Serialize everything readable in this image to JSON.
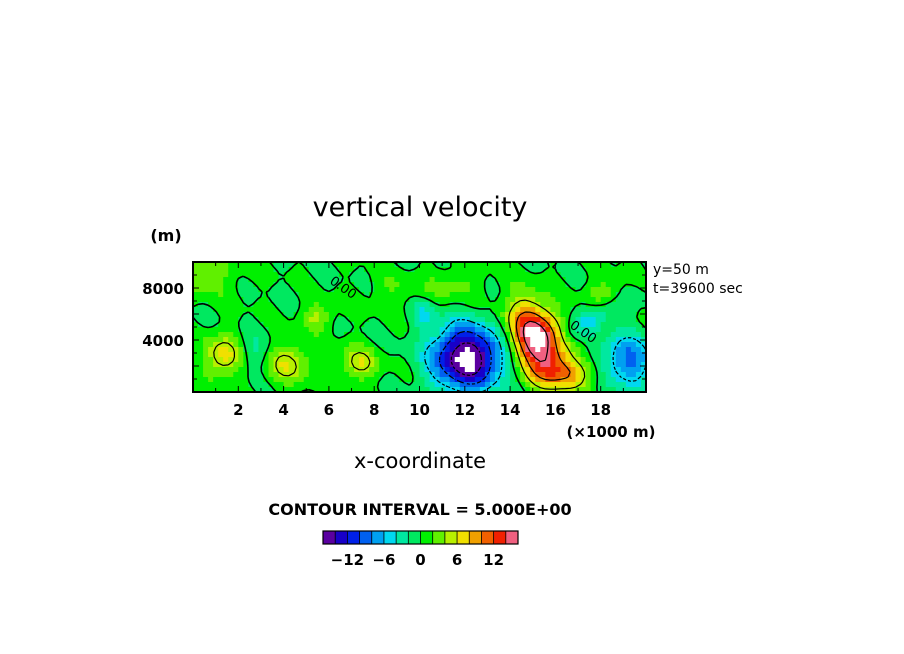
{
  "chart_data": {
    "type": "heatmap",
    "title": "vertical velocity",
    "xlabel": "x-coordinate",
    "x_unit_label": "(×1000 m)",
    "y_unit_label": "(m)",
    "xlim": [
      0,
      20
    ],
    "ylim": [
      0,
      10000
    ],
    "x_ticks": [
      2,
      4,
      6,
      8,
      10,
      12,
      14,
      16,
      18
    ],
    "x_tick_labels": [
      "2",
      "4",
      "6",
      "8",
      "10",
      "12",
      "14",
      "16",
      "18"
    ],
    "y_ticks": [
      4000,
      8000
    ],
    "y_tick_labels": [
      "4000",
      "8000"
    ],
    "info_lines": [
      "y=50 m",
      "t=39600 sec"
    ],
    "contour_interval_label": "CONTOUR INTERVAL = 5.000E+00",
    "contour_interval": 5.0,
    "zero_contour_labels": [
      "0.00",
      "0.00"
    ],
    "zero_label_positions_data": [
      [
        6,
        8400
      ],
      [
        16.6,
        5000
      ]
    ],
    "colorbar": {
      "tick_values": [
        -12,
        -6,
        0,
        6,
        12
      ],
      "tick_labels": [
        "−12",
        "−6",
        "0",
        "6",
        "12"
      ],
      "min": -16,
      "max": 16,
      "levels": 16
    },
    "colors": [
      "#5a00a0",
      "#1800c8",
      "#0020e8",
      "#0060f0",
      "#00a0f0",
      "#00d8f0",
      "#00e8a0",
      "#00e860",
      "#00f000",
      "#60f000",
      "#b8f000",
      "#f0e000",
      "#f0a000",
      "#f06000",
      "#f02000",
      "#f06080"
    ],
    "features": [
      {
        "x": 12.1,
        "y": 2600,
        "sx": 1.05,
        "sy": 1700,
        "amp": -19,
        "angle": 0
      },
      {
        "x": 10.2,
        "y": 6000,
        "sx": 0.35,
        "sy": 700,
        "amp": -4,
        "angle": 0
      },
      {
        "x": 19.2,
        "y": 2400,
        "sx": 0.8,
        "sy": 1400,
        "amp": -9,
        "angle": 0
      },
      {
        "x": 17.6,
        "y": 5600,
        "sx": 1.4,
        "sy": 650,
        "amp": -4,
        "angle": 30
      },
      {
        "x": 2.7,
        "y": 3000,
        "sx": 0.5,
        "sy": 1000,
        "amp": -3,
        "angle": 0
      },
      {
        "x": 15.2,
        "y": 3900,
        "sx": 0.7,
        "sy": 2100,
        "amp": 20,
        "angle": 30
      },
      {
        "x": 16.6,
        "y": 1400,
        "sx": 0.9,
        "sy": 800,
        "amp": 7,
        "angle": 0
      },
      {
        "x": 1.3,
        "y": 2700,
        "sx": 0.6,
        "sy": 1200,
        "amp": 7,
        "angle": 0
      },
      {
        "x": 4.2,
        "y": 2200,
        "sx": 0.7,
        "sy": 1100,
        "amp": 6,
        "angle": 0
      },
      {
        "x": 5.5,
        "y": 5800,
        "sx": 0.45,
        "sy": 700,
        "amp": 5,
        "angle": 0
      },
      {
        "x": 7.3,
        "y": 2200,
        "sx": 0.6,
        "sy": 900,
        "amp": 6,
        "angle": 0
      },
      {
        "x": 18.3,
        "y": 7600,
        "sx": 0.6,
        "sy": 700,
        "amp": 4,
        "angle": 0
      },
      {
        "x": 0.4,
        "y": 9200,
        "sx": 1.0,
        "sy": 1200,
        "amp": 4,
        "angle": 0
      },
      {
        "x": 11.5,
        "y": 8200,
        "sx": 0.8,
        "sy": 900,
        "amp": 3,
        "angle": 0
      },
      {
        "x": 8.8,
        "y": 7800,
        "sx": 0.8,
        "sy": 900,
        "amp": 2,
        "angle": 0
      }
    ]
  }
}
